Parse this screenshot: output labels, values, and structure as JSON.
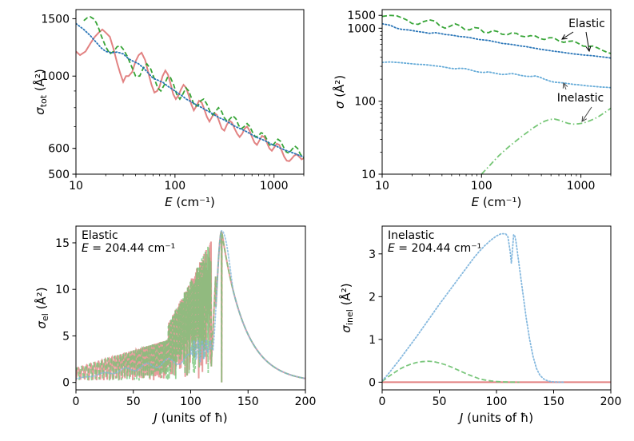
{
  "colors": {
    "red": "#e07b7b",
    "green": "#2ca02c",
    "green_light": "#6fc36f",
    "blue": "#1f6fb4",
    "blue_light": "#5da6d6",
    "blue_dots": "#7fb5dd",
    "green_dash": "#74c476",
    "orange_overlap": "#b88a5a",
    "annotation_gray": "#444444"
  },
  "chart_data": [
    {
      "id": "top-left",
      "type": "line",
      "xscale": "log",
      "yscale": "log",
      "xlim": [
        10,
        2000
      ],
      "ylim": [
        500,
        1600
      ],
      "xticks": [
        10,
        100,
        1000
      ],
      "xticklabels": [
        "10",
        "100",
        "1000"
      ],
      "yticks": [
        500,
        600,
        1000,
        1500
      ],
      "yticklabels": [
        "500",
        "600",
        "1000",
        "1500"
      ],
      "xlabel": "E (cm⁻¹)",
      "ylabel": "σtot (Å²)",
      "series": [
        {
          "style": "solid",
          "color": "red",
          "x": [
            10,
            11,
            12.5,
            14,
            15.5,
            17,
            18.5,
            20,
            22,
            24,
            26,
            28,
            30,
            32,
            34,
            37,
            40,
            43,
            46,
            50,
            54,
            58,
            62,
            66,
            70,
            75,
            80,
            85,
            90,
            96,
            102,
            108,
            115,
            122,
            130,
            138,
            146,
            155,
            165,
            175,
            186,
            198,
            210,
            223,
            237,
            250,
            265,
            280,
            297,
            315,
            335,
            355,
            376,
            400,
            425,
            450,
            477,
            505,
            535,
            566,
            600,
            636,
            673,
            713,
            756,
            800,
            848,
            898,
            951,
            1008,
            1068,
            1131,
            1198,
            1270,
            1345,
            1425,
            1510,
            1600,
            1700,
            1800,
            1900,
            2000
          ],
          "y": [
            1190,
            1160,
            1190,
            1260,
            1320,
            1360,
            1390,
            1360,
            1320,
            1210,
            1100,
            1020,
            960,
            1000,
            1000,
            1030,
            1110,
            1160,
            1180,
            1120,
            1020,
            940,
            890,
            900,
            930,
            1000,
            1040,
            1010,
            950,
            880,
            850,
            870,
            910,
            940,
            920,
            870,
            820,
            785,
            810,
            840,
            830,
            790,
            750,
            725,
            750,
            770,
            760,
            725,
            690,
            680,
            710,
            730,
            720,
            690,
            665,
            650,
            665,
            690,
            700,
            680,
            650,
            625,
            615,
            635,
            655,
            650,
            625,
            600,
            590,
            605,
            620,
            615,
            590,
            565,
            550,
            548,
            558,
            570,
            575,
            565,
            555,
            560
          ]
        },
        {
          "style": "dashed",
          "color": "green",
          "x": [
            12,
            13,
            14,
            15,
            16,
            17,
            18,
            20,
            22,
            24,
            26,
            28,
            30,
            33,
            36,
            40,
            44,
            48,
            52,
            57,
            62,
            67,
            72,
            78,
            84,
            90,
            97,
            104,
            112,
            120,
            129,
            138,
            148,
            158,
            170,
            182,
            195,
            210,
            225,
            240,
            258,
            275,
            295,
            315,
            338,
            360,
            385,
            412,
            440,
            470,
            500,
            535,
            570,
            610,
            650,
            695,
            740,
            790,
            845,
            900,
            960,
            1025,
            1095,
            1170,
            1250,
            1330,
            1420,
            1515,
            1620,
            1730,
            1850,
            2000
          ],
          "y": [
            1480,
            1510,
            1520,
            1500,
            1460,
            1400,
            1330,
            1230,
            1170,
            1190,
            1230,
            1240,
            1210,
            1150,
            1080,
            1000,
            1000,
            1060,
            1090,
            1050,
            980,
            920,
            900,
            940,
            990,
            990,
            940,
            880,
            850,
            880,
            920,
            900,
            850,
            810,
            810,
            840,
            850,
            820,
            780,
            760,
            780,
            800,
            780,
            745,
            725,
            740,
            755,
            740,
            705,
            690,
            700,
            715,
            700,
            670,
            650,
            655,
            670,
            665,
            640,
            615,
            610,
            625,
            640,
            630,
            605,
            585,
            580,
            595,
            610,
            600,
            575,
            560
          ]
        },
        {
          "style": "dotted",
          "color": "blue",
          "x": [
            10,
            12,
            14,
            16,
            18,
            20,
            23,
            26,
            30,
            34,
            38,
            43,
            48,
            54,
            60,
            68,
            76,
            85,
            95,
            105,
            118,
            130,
            145,
            160,
            180,
            200,
            225,
            250,
            280,
            310,
            350,
            390,
            430,
            480,
            530,
            600,
            670,
            750,
            840,
            940,
            1050,
            1170,
            1310,
            1460,
            1630,
            1820,
            2000
          ],
          "y": [
            1450,
            1390,
            1330,
            1270,
            1220,
            1190,
            1180,
            1185,
            1170,
            1130,
            1110,
            1090,
            1060,
            1020,
            985,
            970,
            955,
            930,
            910,
            890,
            870,
            850,
            835,
            820,
            805,
            790,
            775,
            760,
            745,
            735,
            720,
            705,
            695,
            685,
            675,
            660,
            648,
            640,
            630,
            618,
            610,
            600,
            592,
            585,
            578,
            570,
            565
          ]
        }
      ]
    },
    {
      "id": "top-right",
      "type": "line",
      "xscale": "log",
      "yscale": "log",
      "xlim": [
        10,
        2000
      ],
      "ylim": [
        10,
        1800
      ],
      "xticks": [
        10,
        100,
        1000
      ],
      "xticklabels": [
        "10",
        "100",
        "1000"
      ],
      "yticks": [
        10,
        100,
        1000,
        1500
      ],
      "yticklabels": [
        "10",
        "100",
        "1000",
        "1500"
      ],
      "xlabel": "E (cm⁻¹)",
      "ylabel": "σ (Å²)",
      "annotations": [
        {
          "text": "Elastic",
          "x": 1000,
          "y": 1180
        },
        {
          "text": "Inelastic",
          "x": 1000,
          "y": 70
        }
      ],
      "series": [
        {
          "style": "dashed",
          "color": "green",
          "x": [
            10,
            12,
            14,
            16,
            18,
            20,
            23,
            26,
            30,
            34,
            38,
            43,
            48,
            54,
            60,
            68,
            76,
            85,
            95,
            105,
            118,
            130,
            145,
            160,
            180,
            200,
            225,
            250,
            280,
            310,
            350,
            390,
            430,
            480,
            530,
            600,
            670,
            750,
            840,
            940,
            1050,
            1170,
            1310,
            1460,
            1630,
            1820,
            2000
          ],
          "y": [
            1450,
            1500,
            1480,
            1380,
            1280,
            1160,
            1130,
            1230,
            1300,
            1250,
            1080,
            1000,
            1060,
            1150,
            1090,
            960,
            950,
            1020,
            1000,
            880,
            870,
            930,
            900,
            830,
            810,
            860,
            850,
            780,
            760,
            790,
            780,
            720,
            700,
            740,
            740,
            670,
            640,
            660,
            670,
            620,
            570,
            560,
            570,
            540,
            500,
            470,
            450
          ]
        },
        {
          "style": "dotted",
          "color": "blue",
          "x": [
            10,
            12,
            14,
            16,
            18,
            20,
            23,
            26,
            30,
            34,
            38,
            43,
            48,
            54,
            60,
            68,
            76,
            85,
            95,
            105,
            118,
            130,
            145,
            160,
            180,
            200,
            225,
            250,
            280,
            310,
            350,
            390,
            430,
            480,
            530,
            600,
            670,
            750,
            840,
            940,
            1050,
            1170,
            1310,
            1460,
            1630,
            1820,
            2000
          ],
          "y": [
            1150,
            1100,
            1000,
            960,
            950,
            930,
            900,
            880,
            850,
            870,
            850,
            820,
            810,
            790,
            770,
            760,
            745,
            720,
            700,
            690,
            680,
            660,
            640,
            620,
            610,
            600,
            585,
            570,
            560,
            545,
            530,
            515,
            505,
            495,
            485,
            475,
            465,
            455,
            445,
            438,
            430,
            425,
            420,
            412,
            405,
            398,
            390
          ]
        },
        {
          "style": "dotted",
          "color": "blue_light",
          "x": [
            10,
            12,
            14,
            16,
            18,
            20,
            23,
            26,
            30,
            34,
            38,
            43,
            48,
            54,
            60,
            68,
            76,
            85,
            95,
            105,
            118,
            130,
            145,
            160,
            180,
            200,
            225,
            250,
            280,
            310,
            350,
            390,
            430,
            480,
            530,
            600,
            670,
            750,
            840,
            940,
            1050,
            1170,
            1310,
            1460,
            1630,
            1820,
            2000
          ],
          "y": [
            340,
            345,
            340,
            335,
            330,
            325,
            320,
            318,
            312,
            305,
            300,
            292,
            283,
            278,
            282,
            280,
            270,
            258,
            250,
            248,
            252,
            245,
            238,
            232,
            234,
            240,
            233,
            225,
            220,
            218,
            222,
            212,
            200,
            190,
            183,
            180,
            178,
            174,
            170,
            168,
            165,
            162,
            160,
            158,
            156,
            155,
            153
          ]
        },
        {
          "style": "dashdot",
          "color": "green_light",
          "x": [
            100,
            110,
            120,
            135,
            150,
            170,
            190,
            215,
            240,
            270,
            300,
            340,
            380,
            430,
            480,
            540,
            600,
            670,
            750,
            840,
            940,
            1050,
            1170,
            1310,
            1460,
            1630,
            1820,
            2000
          ],
          "y": [
            10,
            11.5,
            13,
            15.5,
            18,
            21,
            24,
            27.5,
            31,
            35,
            39,
            44,
            48.5,
            53,
            56,
            57,
            55,
            52,
            49.5,
            48.5,
            49,
            50,
            52.5,
            56,
            60,
            66,
            73,
            80
          ]
        }
      ]
    },
    {
      "id": "bottom-left",
      "type": "line",
      "xlim": [
        0,
        200
      ],
      "ylim": [
        -0.8,
        16.8
      ],
      "xticks": [
        0,
        50,
        100,
        150,
        200
      ],
      "xticklabels": [
        "0",
        "50",
        "100",
        "150",
        "200"
      ],
      "yticks": [
        0,
        5,
        10,
        15
      ],
      "yticklabels": [
        "0",
        "5",
        "10",
        "15"
      ],
      "xlabel": "J (units of ħ)",
      "ylabel": "σel (Å²)",
      "panel_label": "Elastic",
      "panel_energy": "E = 204.44 cm⁻¹",
      "series": [
        {
          "style": "solid",
          "color": "red",
          "kind": "elastic_osc"
        },
        {
          "style": "dashed",
          "color": "green_dash",
          "kind": "elastic_osc"
        },
        {
          "style": "dotted",
          "color": "blue_dots",
          "kind": "elastic_smooth"
        }
      ]
    },
    {
      "id": "bottom-right",
      "type": "line",
      "xlim": [
        0,
        200
      ],
      "ylim": [
        -0.18,
        3.65
      ],
      "xticks": [
        0,
        50,
        100,
        150,
        200
      ],
      "xticklabels": [
        "0",
        "50",
        "100",
        "150",
        "200"
      ],
      "yticks": [
        0,
        1,
        2,
        3
      ],
      "yticklabels": [
        "0",
        "1",
        "2",
        "3"
      ],
      "xlabel": "J (units of ħ)",
      "ylabel": "σinel (Å²)",
      "panel_label": "Inelastic",
      "panel_energy": "E = 204.44 cm⁻¹",
      "series": [
        {
          "style": "solid",
          "color": "red",
          "x": [
            0,
            200
          ],
          "y": [
            0,
            0
          ]
        },
        {
          "style": "dashed",
          "color": "green_dash",
          "x": [
            0,
            5,
            10,
            15,
            20,
            25,
            30,
            35,
            40,
            45,
            50,
            55,
            60,
            65,
            70,
            75,
            80,
            85,
            90,
            95,
            100,
            105,
            110,
            115,
            120
          ],
          "y": [
            0.02,
            0.12,
            0.21,
            0.3,
            0.37,
            0.42,
            0.46,
            0.48,
            0.49,
            0.48,
            0.45,
            0.41,
            0.36,
            0.3,
            0.24,
            0.18,
            0.13,
            0.08,
            0.05,
            0.03,
            0.015,
            0.007,
            0.003,
            0.001,
            0
          ]
        },
        {
          "style": "dotted",
          "color": "blue_dots",
          "x": [
            0,
            5,
            10,
            15,
            20,
            25,
            30,
            35,
            40,
            45,
            50,
            55,
            60,
            65,
            70,
            75,
            80,
            85,
            90,
            95,
            100,
            104,
            108,
            110,
            112,
            113,
            114,
            115,
            116,
            117,
            118,
            120,
            123,
            126,
            129,
            132,
            135,
            138,
            142,
            146,
            150,
            155,
            160
          ],
          "y": [
            0.03,
            0.18,
            0.35,
            0.52,
            0.7,
            0.88,
            1.06,
            1.25,
            1.44,
            1.63,
            1.82,
            2.0,
            2.18,
            2.36,
            2.54,
            2.72,
            2.9,
            3.06,
            3.2,
            3.32,
            3.42,
            3.47,
            3.47,
            3.4,
            3.05,
            2.78,
            3.1,
            3.45,
            3.42,
            3.3,
            3.1,
            2.7,
            2.1,
            1.5,
            1.0,
            0.6,
            0.32,
            0.16,
            0.06,
            0.02,
            0.006,
            0.001,
            0
          ]
        }
      ]
    }
  ]
}
